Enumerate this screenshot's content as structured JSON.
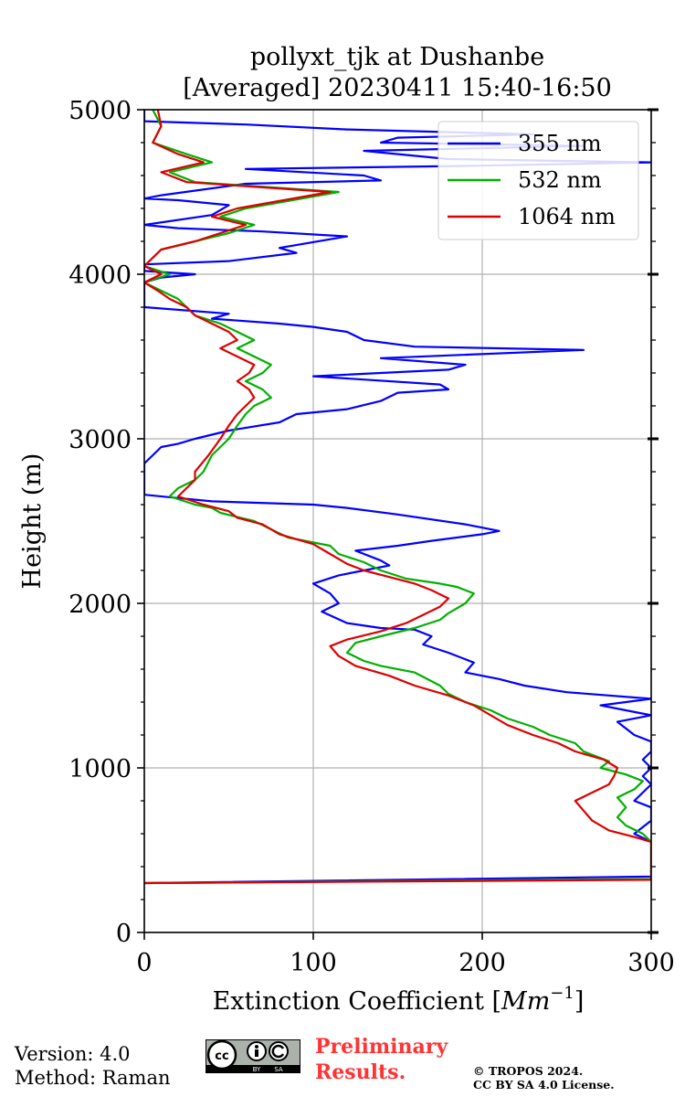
{
  "chart_data": {
    "type": "line",
    "title": "pollyxt_tjk at Dushanbe",
    "subtitle": "[Averaged] 20230411 15:40-16:50",
    "xlabel": "Extinction Coefficient [",
    "xlabel_unit": "Mm",
    "xlabel_exp": "−1",
    "xlabel_close": "]",
    "ylabel": "Height (m)",
    "xlim": [
      0,
      300
    ],
    "ylim": [
      0,
      5000
    ],
    "xticks": [
      0,
      100,
      200,
      300
    ],
    "yticks": [
      0,
      1000,
      2000,
      3000,
      4000,
      5000
    ],
    "grid": true,
    "legend_position": "top-right",
    "series": [
      {
        "name": "355 nm",
        "color": "#0000ff",
        "points": [
          [
            0,
            300
          ],
          [
            300,
            340
          ],
          [
            300,
            550
          ],
          [
            290,
            600
          ],
          [
            300,
            680
          ],
          [
            300,
            760
          ],
          [
            290,
            800
          ],
          [
            300,
            900
          ],
          [
            295,
            950
          ],
          [
            300,
            1000
          ],
          [
            295,
            1050
          ],
          [
            300,
            1100
          ],
          [
            300,
            1160
          ],
          [
            290,
            1200
          ],
          [
            280,
            1280
          ],
          [
            300,
            1320
          ],
          [
            285,
            1350
          ],
          [
            270,
            1380
          ],
          [
            300,
            1420
          ],
          [
            250,
            1460
          ],
          [
            225,
            1500
          ],
          [
            210,
            1540
          ],
          [
            190,
            1580
          ],
          [
            195,
            1640
          ],
          [
            180,
            1700
          ],
          [
            165,
            1750
          ],
          [
            170,
            1800
          ],
          [
            160,
            1840
          ],
          [
            140,
            1850
          ],
          [
            120,
            1880
          ],
          [
            105,
            1950
          ],
          [
            115,
            2000
          ],
          [
            110,
            2060
          ],
          [
            100,
            2120
          ],
          [
            115,
            2170
          ],
          [
            130,
            2200
          ],
          [
            145,
            2230
          ],
          [
            140,
            2260
          ],
          [
            125,
            2320
          ],
          [
            150,
            2350
          ],
          [
            170,
            2380
          ],
          [
            200,
            2420
          ],
          [
            210,
            2440
          ],
          [
            190,
            2480
          ],
          [
            150,
            2540
          ],
          [
            120,
            2580
          ],
          [
            100,
            2600
          ],
          [
            40,
            2620
          ],
          [
            20,
            2640
          ],
          [
            0,
            2660
          ],
          [
            0,
            2700
          ],
          [
            0,
            2850
          ],
          [
            10,
            2950
          ],
          [
            20,
            2970
          ],
          [
            30,
            3000
          ],
          [
            50,
            3050
          ],
          [
            80,
            3100
          ],
          [
            90,
            3150
          ],
          [
            120,
            3180
          ],
          [
            140,
            3230
          ],
          [
            150,
            3280
          ],
          [
            180,
            3300
          ],
          [
            175,
            3330
          ],
          [
            100,
            3380
          ],
          [
            180,
            3420
          ],
          [
            190,
            3450
          ],
          [
            140,
            3490
          ],
          [
            260,
            3540
          ],
          [
            160,
            3560
          ],
          [
            130,
            3600
          ],
          [
            120,
            3650
          ],
          [
            100,
            3680
          ],
          [
            80,
            3700
          ],
          [
            40,
            3730
          ],
          [
            50,
            3760
          ],
          [
            0,
            3800
          ],
          [
            0,
            3850
          ],
          [
            0,
            3950
          ],
          [
            10,
            3980
          ],
          [
            30,
            4000
          ],
          [
            0,
            4020
          ],
          [
            0,
            4060
          ],
          [
            50,
            4080
          ],
          [
            90,
            4130
          ],
          [
            80,
            4160
          ],
          [
            120,
            4230
          ],
          [
            70,
            4260
          ],
          [
            20,
            4280
          ],
          [
            0,
            4300
          ],
          [
            40,
            4360
          ],
          [
            50,
            4420
          ],
          [
            20,
            4450
          ],
          [
            0,
            4460
          ],
          [
            10,
            4480
          ],
          [
            60,
            4550
          ],
          [
            140,
            4570
          ],
          [
            130,
            4600
          ],
          [
            60,
            4640
          ],
          [
            200,
            4660
          ],
          [
            300,
            4680
          ],
          [
            180,
            4700
          ],
          [
            130,
            4750
          ],
          [
            260,
            4780
          ],
          [
            140,
            4800
          ],
          [
            150,
            4830
          ],
          [
            230,
            4850
          ],
          [
            120,
            4880
          ],
          [
            60,
            4910
          ],
          [
            0,
            4930
          ],
          [
            0,
            4970
          ],
          [
            0,
            5000
          ]
        ]
      },
      {
        "name": "532 nm",
        "color": "#00b000",
        "points": [
          [
            0,
            300
          ],
          [
            300,
            325
          ],
          [
            300,
            550
          ],
          [
            295,
            600
          ],
          [
            285,
            650
          ],
          [
            280,
            700
          ],
          [
            285,
            760
          ],
          [
            280,
            820
          ],
          [
            290,
            870
          ],
          [
            295,
            920
          ],
          [
            285,
            960
          ],
          [
            270,
            1000
          ],
          [
            275,
            1040
          ],
          [
            260,
            1100
          ],
          [
            255,
            1150
          ],
          [
            240,
            1200
          ],
          [
            230,
            1250
          ],
          [
            215,
            1300
          ],
          [
            205,
            1350
          ],
          [
            190,
            1400
          ],
          [
            180,
            1450
          ],
          [
            175,
            1500
          ],
          [
            160,
            1580
          ],
          [
            140,
            1620
          ],
          [
            130,
            1650
          ],
          [
            120,
            1700
          ],
          [
            125,
            1760
          ],
          [
            140,
            1800
          ],
          [
            160,
            1850
          ],
          [
            175,
            1900
          ],
          [
            180,
            1940
          ],
          [
            190,
            2000
          ],
          [
            195,
            2060
          ],
          [
            185,
            2100
          ],
          [
            175,
            2120
          ],
          [
            155,
            2150
          ],
          [
            140,
            2200
          ],
          [
            130,
            2250
          ],
          [
            115,
            2300
          ],
          [
            110,
            2350
          ],
          [
            85,
            2400
          ],
          [
            75,
            2450
          ],
          [
            65,
            2500
          ],
          [
            45,
            2550
          ],
          [
            40,
            2580
          ],
          [
            30,
            2600
          ],
          [
            15,
            2650
          ],
          [
            20,
            2700
          ],
          [
            30,
            2750
          ],
          [
            35,
            2800
          ],
          [
            40,
            2900
          ],
          [
            50,
            3000
          ],
          [
            55,
            3080
          ],
          [
            60,
            3150
          ],
          [
            65,
            3200
          ],
          [
            75,
            3250
          ],
          [
            70,
            3300
          ],
          [
            60,
            3350
          ],
          [
            70,
            3400
          ],
          [
            75,
            3450
          ],
          [
            65,
            3500
          ],
          [
            55,
            3550
          ],
          [
            65,
            3600
          ],
          [
            55,
            3650
          ],
          [
            45,
            3700
          ],
          [
            30,
            3750
          ],
          [
            25,
            3800
          ],
          [
            20,
            3850
          ],
          [
            10,
            3900
          ],
          [
            0,
            3950
          ],
          [
            15,
            4000
          ],
          [
            0,
            4050
          ],
          [
            10,
            4150
          ],
          [
            30,
            4200
          ],
          [
            50,
            4250
          ],
          [
            65,
            4300
          ],
          [
            45,
            4350
          ],
          [
            60,
            4400
          ],
          [
            115,
            4500
          ],
          [
            30,
            4560
          ],
          [
            15,
            4620
          ],
          [
            40,
            4680
          ],
          [
            25,
            4730
          ],
          [
            5,
            4800
          ],
          [
            10,
            4900
          ],
          [
            5,
            5000
          ]
        ]
      },
      {
        "name": "1064 nm",
        "color": "#dd0000",
        "points": [
          [
            0,
            300
          ],
          [
            300,
            320
          ],
          [
            300,
            550
          ],
          [
            290,
            580
          ],
          [
            275,
            620
          ],
          [
            265,
            680
          ],
          [
            260,
            740
          ],
          [
            255,
            800
          ],
          [
            265,
            850
          ],
          [
            275,
            900
          ],
          [
            278,
            950
          ],
          [
            280,
            1000
          ],
          [
            272,
            1050
          ],
          [
            255,
            1100
          ],
          [
            245,
            1150
          ],
          [
            230,
            1200
          ],
          [
            215,
            1260
          ],
          [
            205,
            1320
          ],
          [
            195,
            1380
          ],
          [
            180,
            1440
          ],
          [
            160,
            1500
          ],
          [
            145,
            1560
          ],
          [
            125,
            1620
          ],
          [
            115,
            1680
          ],
          [
            110,
            1740
          ],
          [
            120,
            1780
          ],
          [
            140,
            1830
          ],
          [
            155,
            1880
          ],
          [
            165,
            1930
          ],
          [
            175,
            1980
          ],
          [
            180,
            2030
          ],
          [
            170,
            2080
          ],
          [
            160,
            2120
          ],
          [
            145,
            2160
          ],
          [
            130,
            2200
          ],
          [
            120,
            2240
          ],
          [
            110,
            2300
          ],
          [
            100,
            2360
          ],
          [
            80,
            2420
          ],
          [
            70,
            2480
          ],
          [
            55,
            2520
          ],
          [
            50,
            2560
          ],
          [
            35,
            2600
          ],
          [
            20,
            2650
          ],
          [
            25,
            2700
          ],
          [
            30,
            2750
          ],
          [
            30,
            2800
          ],
          [
            38,
            2900
          ],
          [
            45,
            3000
          ],
          [
            50,
            3080
          ],
          [
            55,
            3150
          ],
          [
            60,
            3200
          ],
          [
            65,
            3250
          ],
          [
            62,
            3300
          ],
          [
            55,
            3350
          ],
          [
            62,
            3400
          ],
          [
            65,
            3450
          ],
          [
            55,
            3500
          ],
          [
            45,
            3550
          ],
          [
            55,
            3600
          ],
          [
            50,
            3650
          ],
          [
            40,
            3700
          ],
          [
            30,
            3750
          ],
          [
            25,
            3800
          ],
          [
            15,
            3850
          ],
          [
            8,
            3900
          ],
          [
            0,
            3950
          ],
          [
            10,
            4000
          ],
          [
            0,
            4050
          ],
          [
            10,
            4150
          ],
          [
            30,
            4200
          ],
          [
            45,
            4250
          ],
          [
            60,
            4300
          ],
          [
            40,
            4350
          ],
          [
            55,
            4400
          ],
          [
            110,
            4500
          ],
          [
            25,
            4560
          ],
          [
            10,
            4620
          ],
          [
            35,
            4680
          ],
          [
            20,
            4730
          ],
          [
            5,
            4800
          ],
          [
            10,
            4900
          ],
          [
            8,
            5000
          ]
        ]
      }
    ]
  },
  "footer": {
    "version": "Version: 4.0",
    "method": "Method: Raman",
    "preliminary_line1": "Preliminary",
    "preliminary_line2": "Results.",
    "copyright_line1": "© TROPOS 2024.",
    "copyright_line2": "CC BY SA 4.0 License.",
    "cc_by": "BY",
    "cc_sa": "SA"
  }
}
